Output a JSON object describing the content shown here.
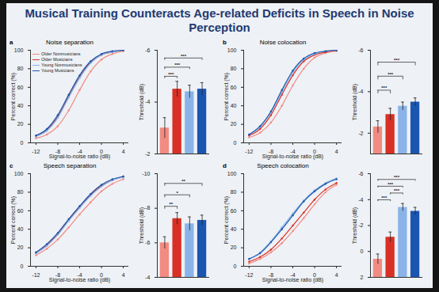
{
  "title": "Musical Training Counteracts Age-related Deficits in Speech in Noise Perception",
  "chart_data": [
    {
      "type": "line",
      "label": "a",
      "title": "Noise separation",
      "x_label": "Signal-to-noise ratio (dB)",
      "y_label": "Percent correct (%)",
      "x": [
        -12,
        -10,
        -8,
        -6,
        -4,
        -2,
        0,
        2,
        4
      ],
      "xlim": [
        -13,
        5
      ],
      "xticks": [
        -12,
        -8,
        -4,
        0,
        4
      ],
      "ylim": [
        0,
        100
      ],
      "yticks": [
        0,
        20,
        40,
        60,
        80,
        100
      ],
      "grid": false,
      "legend": "top-left",
      "marker": "circle",
      "series": [
        {
          "name": "Older Nonmusicians",
          "color": "#f28b82",
          "values": [
            5,
            9,
            18,
            35,
            57,
            77,
            90,
            96,
            99
          ]
        },
        {
          "name": "Older Musicians",
          "color": "#d93025",
          "values": [
            7,
            14,
            28,
            50,
            71,
            87,
            95,
            98,
            100
          ]
        },
        {
          "name": "Young Nonmusicians",
          "color": "#8ab4e8",
          "values": [
            7,
            13,
            27,
            49,
            70,
            86,
            95,
            98,
            100
          ]
        },
        {
          "name": "Young Musicians",
          "color": "#1a56b0",
          "values": [
            8,
            15,
            30,
            52,
            73,
            88,
            96,
            99,
            100
          ]
        }
      ]
    },
    {
      "type": "bar",
      "y_label": "Threshold (dB)",
      "tick_labels": "y",
      "grid": false,
      "categories": [
        "Older Nonmusicians",
        "Older Musicians",
        "Young Nonmusicians",
        "Young Musicians"
      ],
      "values": [
        -3.0,
        -4.5,
        -4.4,
        -4.5
      ],
      "errors": [
        0.4,
        0.3,
        0.25,
        0.25
      ],
      "colors": [
        "#f28b82",
        "#d93025",
        "#8ab4e8",
        "#1a56b0"
      ],
      "ylim": [
        -2,
        -6
      ],
      "yticks": [
        -2,
        -4,
        -6
      ],
      "significance": [
        {
          "from": 0,
          "to": 1,
          "label": "***"
        },
        {
          "from": 0,
          "to": 2,
          "label": "***"
        },
        {
          "from": 0,
          "to": 3,
          "label": "***"
        }
      ]
    },
    {
      "type": "line",
      "label": "b",
      "title": "Noise colocation",
      "x_label": "Signal-to-noise ratio (dB)",
      "y_label": "Percent correct (%)",
      "x": [
        -12,
        -10,
        -8,
        -6,
        -4,
        -2,
        0,
        2,
        4
      ],
      "xlim": [
        -13,
        5
      ],
      "xticks": [
        -12,
        -8,
        -4,
        0,
        4
      ],
      "ylim": [
        0,
        100
      ],
      "yticks": [
        0,
        20,
        40,
        60,
        80,
        100
      ],
      "grid": false,
      "marker": "circle",
      "series": [
        {
          "name": "Older Nonmusicians",
          "color": "#f28b82",
          "values": [
            6,
            11,
            22,
            40,
            62,
            80,
            92,
            97,
            99
          ]
        },
        {
          "name": "Older Musicians",
          "color": "#d93025",
          "values": [
            8,
            15,
            30,
            52,
            73,
            88,
            95,
            98,
            100
          ]
        },
        {
          "name": "Young Nonmusicians",
          "color": "#8ab4e8",
          "values": [
            9,
            17,
            33,
            55,
            76,
            90,
            96,
            99,
            100
          ]
        },
        {
          "name": "Young Musicians",
          "color": "#1a56b0",
          "values": [
            9,
            18,
            34,
            57,
            78,
            91,
            97,
            99,
            100
          ]
        }
      ]
    },
    {
      "type": "bar",
      "y_label": "Threshold (dB)",
      "tick_labels": "y",
      "grid": false,
      "categories": [
        "Older Nonmusicians",
        "Older Musicians",
        "Young Nonmusicians",
        "Young Musicians"
      ],
      "values": [
        -2.3,
        -2.9,
        -3.3,
        -3.5
      ],
      "errors": [
        0.3,
        0.3,
        0.2,
        0.2
      ],
      "colors": [
        "#f28b82",
        "#d93025",
        "#8ab4e8",
        "#1a56b0"
      ],
      "ylim": [
        -1,
        -6
      ],
      "yticks": [
        -2,
        -4,
        -6
      ],
      "significance": [
        {
          "from": 0,
          "to": 1,
          "label": "***"
        },
        {
          "from": 0,
          "to": 2,
          "label": "***"
        },
        {
          "from": 0,
          "to": 3,
          "label": "***"
        }
      ]
    },
    {
      "type": "line",
      "label": "c",
      "title": "Speech separation",
      "x_label": "Signal-to-noise ratio (dB)",
      "y_label": "Percent correct (%)",
      "x": [
        -12,
        -10,
        -8,
        -6,
        -4,
        -2,
        0,
        2,
        4
      ],
      "xlim": [
        -13,
        5
      ],
      "xticks": [
        -12,
        -8,
        -4,
        0,
        4
      ],
      "ylim": [
        0,
        100
      ],
      "yticks": [
        0,
        20,
        40,
        60,
        80,
        100
      ],
      "grid": false,
      "marker": "circle",
      "series": [
        {
          "name": "Older Nonmusicians",
          "color": "#f28b82",
          "values": [
            12,
            19,
            29,
            42,
            56,
            69,
            81,
            89,
            94
          ]
        },
        {
          "name": "Older Musicians",
          "color": "#d93025",
          "values": [
            15,
            23,
            35,
            50,
            64,
            77,
            87,
            93,
            97
          ]
        },
        {
          "name": "Young Nonmusicians",
          "color": "#8ab4e8",
          "values": [
            14,
            22,
            34,
            49,
            63,
            76,
            86,
            93,
            96
          ]
        },
        {
          "name": "Young Musicians",
          "color": "#1a56b0",
          "values": [
            15,
            24,
            36,
            51,
            65,
            78,
            88,
            94,
            97
          ]
        }
      ]
    },
    {
      "type": "bar",
      "y_label": "Threshold (dB)",
      "tick_labels": "y",
      "grid": false,
      "categories": [
        "Older Nonmusicians",
        "Older Musicians",
        "Young Nonmusicians",
        "Young Musicians"
      ],
      "values": [
        -6.0,
        -7.4,
        -7.1,
        -7.3
      ],
      "errors": [
        0.35,
        0.35,
        0.4,
        0.3
      ],
      "colors": [
        "#f28b82",
        "#d93025",
        "#8ab4e8",
        "#1a56b0"
      ],
      "ylim": [
        -4,
        -10
      ],
      "yticks": [
        -4,
        -6,
        -8,
        -10
      ],
      "significance": [
        {
          "from": 0,
          "to": 1,
          "label": "**"
        },
        {
          "from": 0,
          "to": 2,
          "label": "*"
        },
        {
          "from": 0,
          "to": 3,
          "label": "**"
        }
      ]
    },
    {
      "type": "line",
      "label": "d",
      "title": "Speech colocation",
      "x_label": "Signal-to-noise ratio (dB)",
      "y_label": "Percent correct (%)",
      "x": [
        -12,
        -10,
        -8,
        -6,
        -4,
        -2,
        0,
        2,
        4
      ],
      "xlim": [
        -13,
        5
      ],
      "xticks": [
        -12,
        -8,
        -4,
        0,
        4
      ],
      "ylim": [
        0,
        100
      ],
      "yticks": [
        0,
        20,
        40,
        60,
        80,
        100
      ],
      "grid": false,
      "marker": "circle",
      "series": [
        {
          "name": "Older Nonmusicians",
          "color": "#f28b82",
          "values": [
            3,
            8,
            15,
            25,
            38,
            52,
            67,
            80,
            88
          ]
        },
        {
          "name": "Older Musicians",
          "color": "#d93025",
          "values": [
            5,
            10,
            18,
            30,
            44,
            58,
            72,
            83,
            90
          ]
        },
        {
          "name": "Young Nonmusicians",
          "color": "#8ab4e8",
          "values": [
            8,
            15,
            27,
            42,
            57,
            71,
            82,
            90,
            95
          ]
        },
        {
          "name": "Young Musicians",
          "color": "#1a56b0",
          "values": [
            8,
            14,
            26,
            40,
            55,
            70,
            81,
            89,
            94
          ]
        }
      ]
    },
    {
      "type": "bar",
      "y_label": "Threshold (dB)",
      "tick_labels": "y",
      "grid": false,
      "categories": [
        "Older Nonmusicians",
        "Older Musicians",
        "Young Nonmusicians",
        "Young Musicians"
      ],
      "values": [
        0.6,
        -1.1,
        -3.4,
        -3.1
      ],
      "errors": [
        0.4,
        0.4,
        0.3,
        0.3
      ],
      "colors": [
        "#f28b82",
        "#d93025",
        "#8ab4e8",
        "#1a56b0"
      ],
      "ylim": [
        2,
        -6
      ],
      "yticks": [
        2,
        0,
        -2,
        -4,
        -6
      ],
      "significance": [
        {
          "from": 0,
          "to": 1,
          "label": "***"
        },
        {
          "from": 1,
          "to": 2,
          "label": "***"
        },
        {
          "from": 0,
          "to": 2,
          "label": "***"
        },
        {
          "from": 0,
          "to": 3,
          "label": "***"
        }
      ]
    }
  ]
}
